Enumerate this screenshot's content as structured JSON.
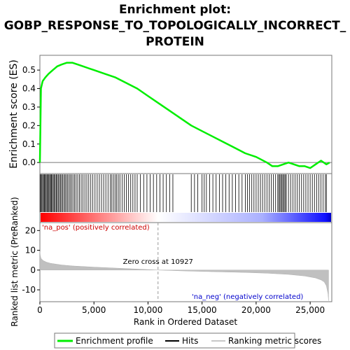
{
  "chart_data": {
    "type": "line",
    "title_lines": [
      "Enrichment plot:",
      "GOBP_RESPONSE_TO_TOPOLOGICALLY_INCORRECT_",
      "PROTEIN"
    ],
    "xlabel": "Rank in Ordered Dataset",
    "xlim": [
      0,
      27000
    ],
    "x_ticks": [
      "0",
      "5,000",
      "10,000",
      "15,000",
      "20,000",
      "25,000"
    ],
    "x_tick_values": [
      0,
      5000,
      10000,
      15000,
      20000,
      25000
    ],
    "es_panel": {
      "ylabel": "Enrichment score (ES)",
      "ylim": [
        -0.06,
        0.58
      ],
      "y_ticks": [
        "0.0",
        "0.1",
        "0.2",
        "0.3",
        "0.4",
        "0.5"
      ],
      "y_tick_values": [
        0.0,
        0.1,
        0.2,
        0.3,
        0.4,
        0.5
      ],
      "series": [
        {
          "name": "Enrichment profile",
          "color": "#00ee00",
          "x": [
            0,
            100,
            250,
            500,
            800,
            1200,
            1600,
            2000,
            2500,
            3000,
            3500,
            4000,
            4500,
            5000,
            6000,
            7000,
            8000,
            9000,
            10000,
            11000,
            12000,
            13000,
            14000,
            15000,
            16000,
            17000,
            18000,
            19000,
            20000,
            21000,
            21500,
            22000,
            22500,
            23000,
            23500,
            24000,
            24500,
            25000,
            25500,
            26000,
            26500,
            26800
          ],
          "y": [
            0.0,
            0.4,
            0.44,
            0.46,
            0.48,
            0.5,
            0.52,
            0.53,
            0.54,
            0.54,
            0.53,
            0.52,
            0.51,
            0.5,
            0.48,
            0.46,
            0.43,
            0.4,
            0.36,
            0.32,
            0.28,
            0.24,
            0.2,
            0.17,
            0.14,
            0.11,
            0.08,
            0.05,
            0.03,
            0.0,
            -0.02,
            -0.02,
            -0.01,
            0.0,
            -0.01,
            -0.02,
            -0.02,
            -0.03,
            -0.01,
            0.01,
            -0.01,
            0.0
          ]
        }
      ]
    },
    "hits_panel": {
      "hit_ranks": [
        20,
        90,
        180,
        260,
        340,
        420,
        500,
        580,
        660,
        750,
        830,
        910,
        990,
        1070,
        1150,
        1240,
        1330,
        1420,
        1510,
        1600,
        1700,
        1800,
        1900,
        2000,
        2110,
        2220,
        2330,
        2440,
        2560,
        2680,
        2800,
        2930,
        3060,
        3200,
        3350,
        3500,
        3660,
        3820,
        3990,
        4160,
        4340,
        4520,
        4710,
        4900,
        5100,
        5300,
        5500,
        5700,
        5900,
        6100,
        6300,
        6500,
        6650,
        6800,
        6950,
        7100,
        7250,
        7400,
        7600,
        7800,
        8000,
        8200,
        8400,
        8600,
        8800,
        9000,
        9300,
        9600,
        9900,
        10200,
        10500,
        10800,
        11100,
        11400,
        11700,
        12000,
        12300,
        14000,
        14300,
        14600,
        15000,
        15200,
        15400,
        15700,
        16000,
        16300,
        16600,
        16900,
        17200,
        17500,
        17800,
        18100,
        18400,
        18700,
        19000,
        19200,
        19400,
        19600,
        19800,
        20000,
        20200,
        20400,
        20600,
        20800,
        21000,
        21200,
        21400,
        21600,
        21800,
        22000,
        22100,
        22200,
        22300,
        22400,
        22500,
        22600,
        22700,
        22800,
        23000,
        23200,
        23400,
        23600,
        23800,
        24000,
        24200,
        24400,
        24600,
        24800,
        25000,
        25200,
        25400,
        25600,
        25800,
        26000,
        26200,
        26400,
        26500
      ]
    },
    "rank_panel": {
      "ylabel": "Ranked list metric (PreRanked)",
      "ylim": [
        -16,
        24
      ],
      "y_ticks": [
        "20",
        "10",
        "0",
        "-10"
      ],
      "y_tick_values": [
        20,
        10,
        0,
        -10
      ],
      "zero_cross_label": "Zero cross at 10927",
      "zero_cross_rank": 10927,
      "pos_label": "'na_pos' (positively correlated)",
      "neg_label": "'na_neg' (negatively correlated)",
      "pos_color": "#cc0000",
      "neg_color": "#0000cc",
      "x": [
        0,
        30,
        100,
        300,
        600,
        1000,
        2000,
        3000,
        5000,
        7000,
        9000,
        10927,
        13000,
        16000,
        19000,
        21000,
        23000,
        24500,
        25500,
        26000,
        26300,
        26500,
        26650,
        26700
      ],
      "values": [
        9.5,
        7.5,
        6,
        4.8,
        4.0,
        3.4,
        2.6,
        2.1,
        1.5,
        1.0,
        0.5,
        0.0,
        -0.4,
        -0.8,
        -1.2,
        -1.6,
        -2.2,
        -3.0,
        -4.0,
        -5.0,
        -6.0,
        -8.0,
        -12.0,
        -15.5
      ]
    },
    "legend": {
      "placement": "bottom",
      "entries": [
        {
          "label": "Enrichment profile",
          "color": "#00ee00"
        },
        {
          "label": "Hits",
          "color": "#000000"
        },
        {
          "label": "Ranking metric scores",
          "color": "#c8c8c8"
        }
      ]
    }
  }
}
